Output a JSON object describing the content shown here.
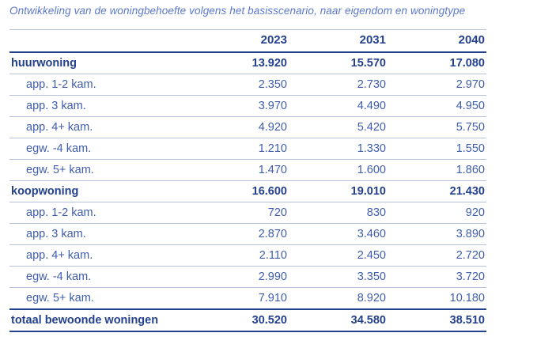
{
  "caption": "Ontwikkeling van de woningbehoefte volgens het basisscenario, naar eigendom en woningtype",
  "colors": {
    "caption_text": "#5b79cc",
    "bold_text": "#24418e",
    "sub_text": "#3f5dab",
    "thin_rule": "#b6c1dc",
    "thick_rule": "#24418e",
    "background": "#ffffff"
  },
  "chart_data": {
    "type": "table",
    "title": "Ontwikkeling van de woningbehoefte volgens het basisscenario, naar eigendom en woningtype",
    "columns": [
      "",
      "2023",
      "2031",
      "2040"
    ],
    "rows": [
      {
        "style": "section",
        "label": "huurwoning",
        "values": [
          "13.920",
          "15.570",
          "17.080"
        ]
      },
      {
        "style": "sub",
        "label": "app. 1-2 kam.",
        "values": [
          "2.350",
          "2.730",
          "2.970"
        ]
      },
      {
        "style": "sub",
        "label": "app. 3 kam.",
        "values": [
          "3.970",
          "4.490",
          "4.950"
        ]
      },
      {
        "style": "sub",
        "label": "app. 4+ kam.",
        "values": [
          "4.920",
          "5.420",
          "5.750"
        ]
      },
      {
        "style": "sub",
        "label": "egw. -4 kam.",
        "values": [
          "1.210",
          "1.330",
          "1.550"
        ]
      },
      {
        "style": "sub",
        "label": "egw. 5+ kam.",
        "values": [
          "1.470",
          "1.600",
          "1.860"
        ]
      },
      {
        "style": "section",
        "label": "koopwoning",
        "values": [
          "16.600",
          "19.010",
          "21.430"
        ]
      },
      {
        "style": "sub",
        "label": "app. 1-2 kam.",
        "values": [
          "720",
          "830",
          "920"
        ]
      },
      {
        "style": "sub",
        "label": "app. 3 kam.",
        "values": [
          "2.870",
          "3.460",
          "3.890"
        ]
      },
      {
        "style": "sub",
        "label": "app. 4+ kam.",
        "values": [
          "2.110",
          "2.450",
          "2.720"
        ]
      },
      {
        "style": "sub",
        "label": "egw. -4 kam.",
        "values": [
          "2.990",
          "3.350",
          "3.720"
        ]
      },
      {
        "style": "sub",
        "label": "egw. 5+ kam.",
        "values": [
          "7.910",
          "8.920",
          "10.180"
        ]
      },
      {
        "style": "total",
        "label": "totaal bewoonde woningen",
        "values": [
          "30.520",
          "34.580",
          "38.510"
        ]
      }
    ]
  }
}
